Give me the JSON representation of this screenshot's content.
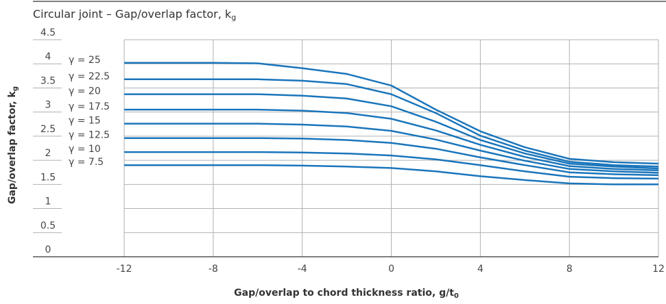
{
  "chart_data": {
    "type": "line",
    "title": "Circular joint – Gap/overlap factor, k",
    "title_subscript": "g",
    "x_label": "Gap/overlap to chord thickness ratio, g/t",
    "x_label_subscript": "0",
    "y_label": "Gap/overlap factor, k",
    "y_label_subscript": "g",
    "x": [
      -12,
      -8,
      -6,
      -4,
      -2,
      0,
      2,
      4,
      6,
      8,
      10,
      12
    ],
    "xlim": [
      -16.1,
      12
    ],
    "xticks": [
      -12,
      -8,
      -4,
      0,
      4,
      8,
      12
    ],
    "ylim": [
      0,
      4.5
    ],
    "yticks": [
      0,
      0.5,
      1.0,
      1.5,
      2.0,
      2.5,
      3.0,
      3.5,
      4.0,
      4.5
    ],
    "grid": true,
    "series": [
      {
        "name": "γ = 25",
        "color": "#1a75bb",
        "values": [
          4.02,
          4.02,
          4.01,
          3.91,
          3.79,
          3.55,
          3.05,
          2.6,
          2.27,
          2.03,
          1.96,
          1.93
        ]
      },
      {
        "name": "γ = 22.5",
        "color": "#1a75bb",
        "values": [
          3.68,
          3.68,
          3.68,
          3.65,
          3.58,
          3.37,
          2.98,
          2.51,
          2.2,
          1.97,
          1.9,
          1.87
        ]
      },
      {
        "name": "γ = 20",
        "color": "#1a75bb",
        "values": [
          3.37,
          3.37,
          3.37,
          3.34,
          3.28,
          3.12,
          2.8,
          2.42,
          2.14,
          1.93,
          1.87,
          1.83
        ]
      },
      {
        "name": "γ = 17.5",
        "color": "#1a75bb",
        "values": [
          3.05,
          3.05,
          3.05,
          3.03,
          2.98,
          2.86,
          2.62,
          2.32,
          2.07,
          1.88,
          1.82,
          1.79
        ]
      },
      {
        "name": "γ = 15",
        "color": "#1a75bb",
        "values": [
          2.76,
          2.76,
          2.76,
          2.74,
          2.7,
          2.61,
          2.43,
          2.2,
          1.99,
          1.82,
          1.77,
          1.74
        ]
      },
      {
        "name": "γ = 12.5",
        "color": "#1a75bb",
        "values": [
          2.46,
          2.46,
          2.46,
          2.45,
          2.42,
          2.36,
          2.24,
          2.06,
          1.9,
          1.75,
          1.71,
          1.69
        ]
      },
      {
        "name": "γ = 10",
        "color": "#1a75bb",
        "values": [
          2.17,
          2.17,
          2.17,
          2.16,
          2.14,
          2.1,
          2.02,
          1.9,
          1.77,
          1.66,
          1.63,
          1.62
        ]
      },
      {
        "name": "γ = 7.5",
        "color": "#1a75bb",
        "values": [
          1.9,
          1.9,
          1.9,
          1.89,
          1.87,
          1.84,
          1.77,
          1.67,
          1.59,
          1.52,
          1.5,
          1.5
        ]
      }
    ]
  }
}
